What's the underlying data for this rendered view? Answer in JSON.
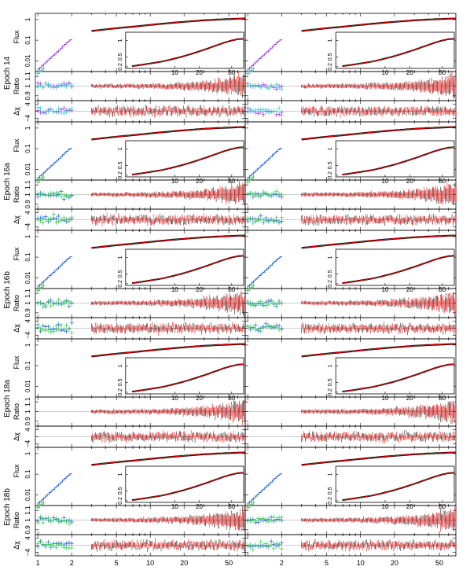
{
  "chart_data": {
    "type": "spectral-fit-grid",
    "layout": {
      "rows": 5,
      "columns": 2
    },
    "epochs": [
      "Epoch 14",
      "Epoch 16a",
      "Epoch 16b",
      "Epoch 18a",
      "Epoch 18b"
    ],
    "xlabel": "",
    "xscale": "log",
    "xlim": [
      0.95,
      70
    ],
    "x_ticks": [
      1,
      2,
      5,
      10,
      20,
      50
    ],
    "x_tick_labels": [
      "1",
      "2",
      "5",
      "10",
      "20",
      "50"
    ],
    "x_gap": [
      2.1,
      3.0
    ],
    "panels": {
      "flux": {
        "ylabel": "Flux",
        "yscale": "log",
        "ylim": [
          0.003,
          2.0
        ],
        "ticks": [
          0.01,
          0.1,
          1
        ],
        "tick_labels": [
          "0.01",
          "0.1",
          "1"
        ],
        "inset": {
          "xscale": "log",
          "xlim": [
            2.5,
            70
          ],
          "ylim": [
            0.15,
            1.25
          ],
          "x_ticks": [
            10,
            20,
            50
          ],
          "x_tick_labels": [
            "10",
            "20",
            "50"
          ],
          "y_ticks": [
            0.2,
            0.5,
            1
          ],
          "y_tick_labels": [
            "0.2",
            "0.5",
            "1"
          ]
        }
      },
      "ratio": {
        "ylabel": "Ratio",
        "ylim": [
          0.85,
          1.15
        ],
        "reference": 1,
        "ticks": [
          0.9,
          1,
          1.1
        ],
        "tick_labels": [
          "0.9",
          "1",
          "1.1"
        ]
      },
      "delchi": {
        "ylabel": "Δχ",
        "ylim": [
          -6,
          6
        ],
        "reference": 0,
        "ticks": [
          -4,
          0,
          4
        ],
        "tick_labels": [
          "−4",
          "0",
          "4"
        ]
      }
    },
    "series": [
      {
        "name": "",
        "color": "#000000",
        "x_range": [
          3,
          70
        ]
      },
      {
        "name": "",
        "color": "#ff0000",
        "x_range": [
          3,
          70
        ]
      },
      {
        "name": "",
        "color": "#9b2fe8",
        "x_range": [
          1.0,
          2.0
        ]
      },
      {
        "name": "",
        "color": "#1f5fd6",
        "x_range": [
          1.0,
          2.0
        ]
      },
      {
        "name": "",
        "color": "#2ec74a",
        "x_range": [
          1.0,
          2.0
        ]
      },
      {
        "name": "",
        "color": "#2ec7c7",
        "x_range": [
          1.0,
          2.0
        ]
      }
    ],
    "flux_curve": {
      "soft_x": [
        1.0,
        1.15,
        1.3,
        1.5,
        1.7,
        1.9,
        2.0
      ],
      "soft_y": [
        0.004,
        0.008,
        0.015,
        0.03,
        0.06,
        0.1,
        0.11
      ],
      "hard_x": [
        3,
        5,
        7,
        10,
        15,
        20,
        30,
        40,
        50,
        60,
        70
      ],
      "hard_y": [
        0.28,
        0.38,
        0.45,
        0.55,
        0.68,
        0.78,
        0.92,
        1.0,
        1.05,
        1.1,
        1.12
      ]
    },
    "inset_curve": {
      "x": [
        3,
        5,
        7,
        10,
        15,
        20,
        30,
        40,
        50,
        60,
        70
      ],
      "y": [
        0.22,
        0.3,
        0.36,
        0.45,
        0.57,
        0.67,
        0.82,
        0.93,
        1.0,
        1.04,
        1.05
      ]
    },
    "rows": [
      {
        "epoch": "Epoch 14",
        "soft_colors": [
          "#9b2fe8",
          "#2ec7c7"
        ],
        "left_soft": true,
        "right_soft": true
      },
      {
        "epoch": "Epoch 16a",
        "soft_colors": [
          "#1f5fd6",
          "#2ec74a"
        ],
        "left_soft": true,
        "right_soft": true
      },
      {
        "epoch": "Epoch 16b",
        "soft_colors": [
          "#1f5fd6",
          "#2ec74a"
        ],
        "left_soft": true,
        "right_soft": true
      },
      {
        "epoch": "Epoch 18a",
        "soft_colors": [],
        "left_soft": false,
        "right_soft": false
      },
      {
        "epoch": "Epoch 18b",
        "soft_colors": [
          "#1f5fd6",
          "#2ec74a"
        ],
        "left_soft": true,
        "right_soft": true
      }
    ]
  }
}
